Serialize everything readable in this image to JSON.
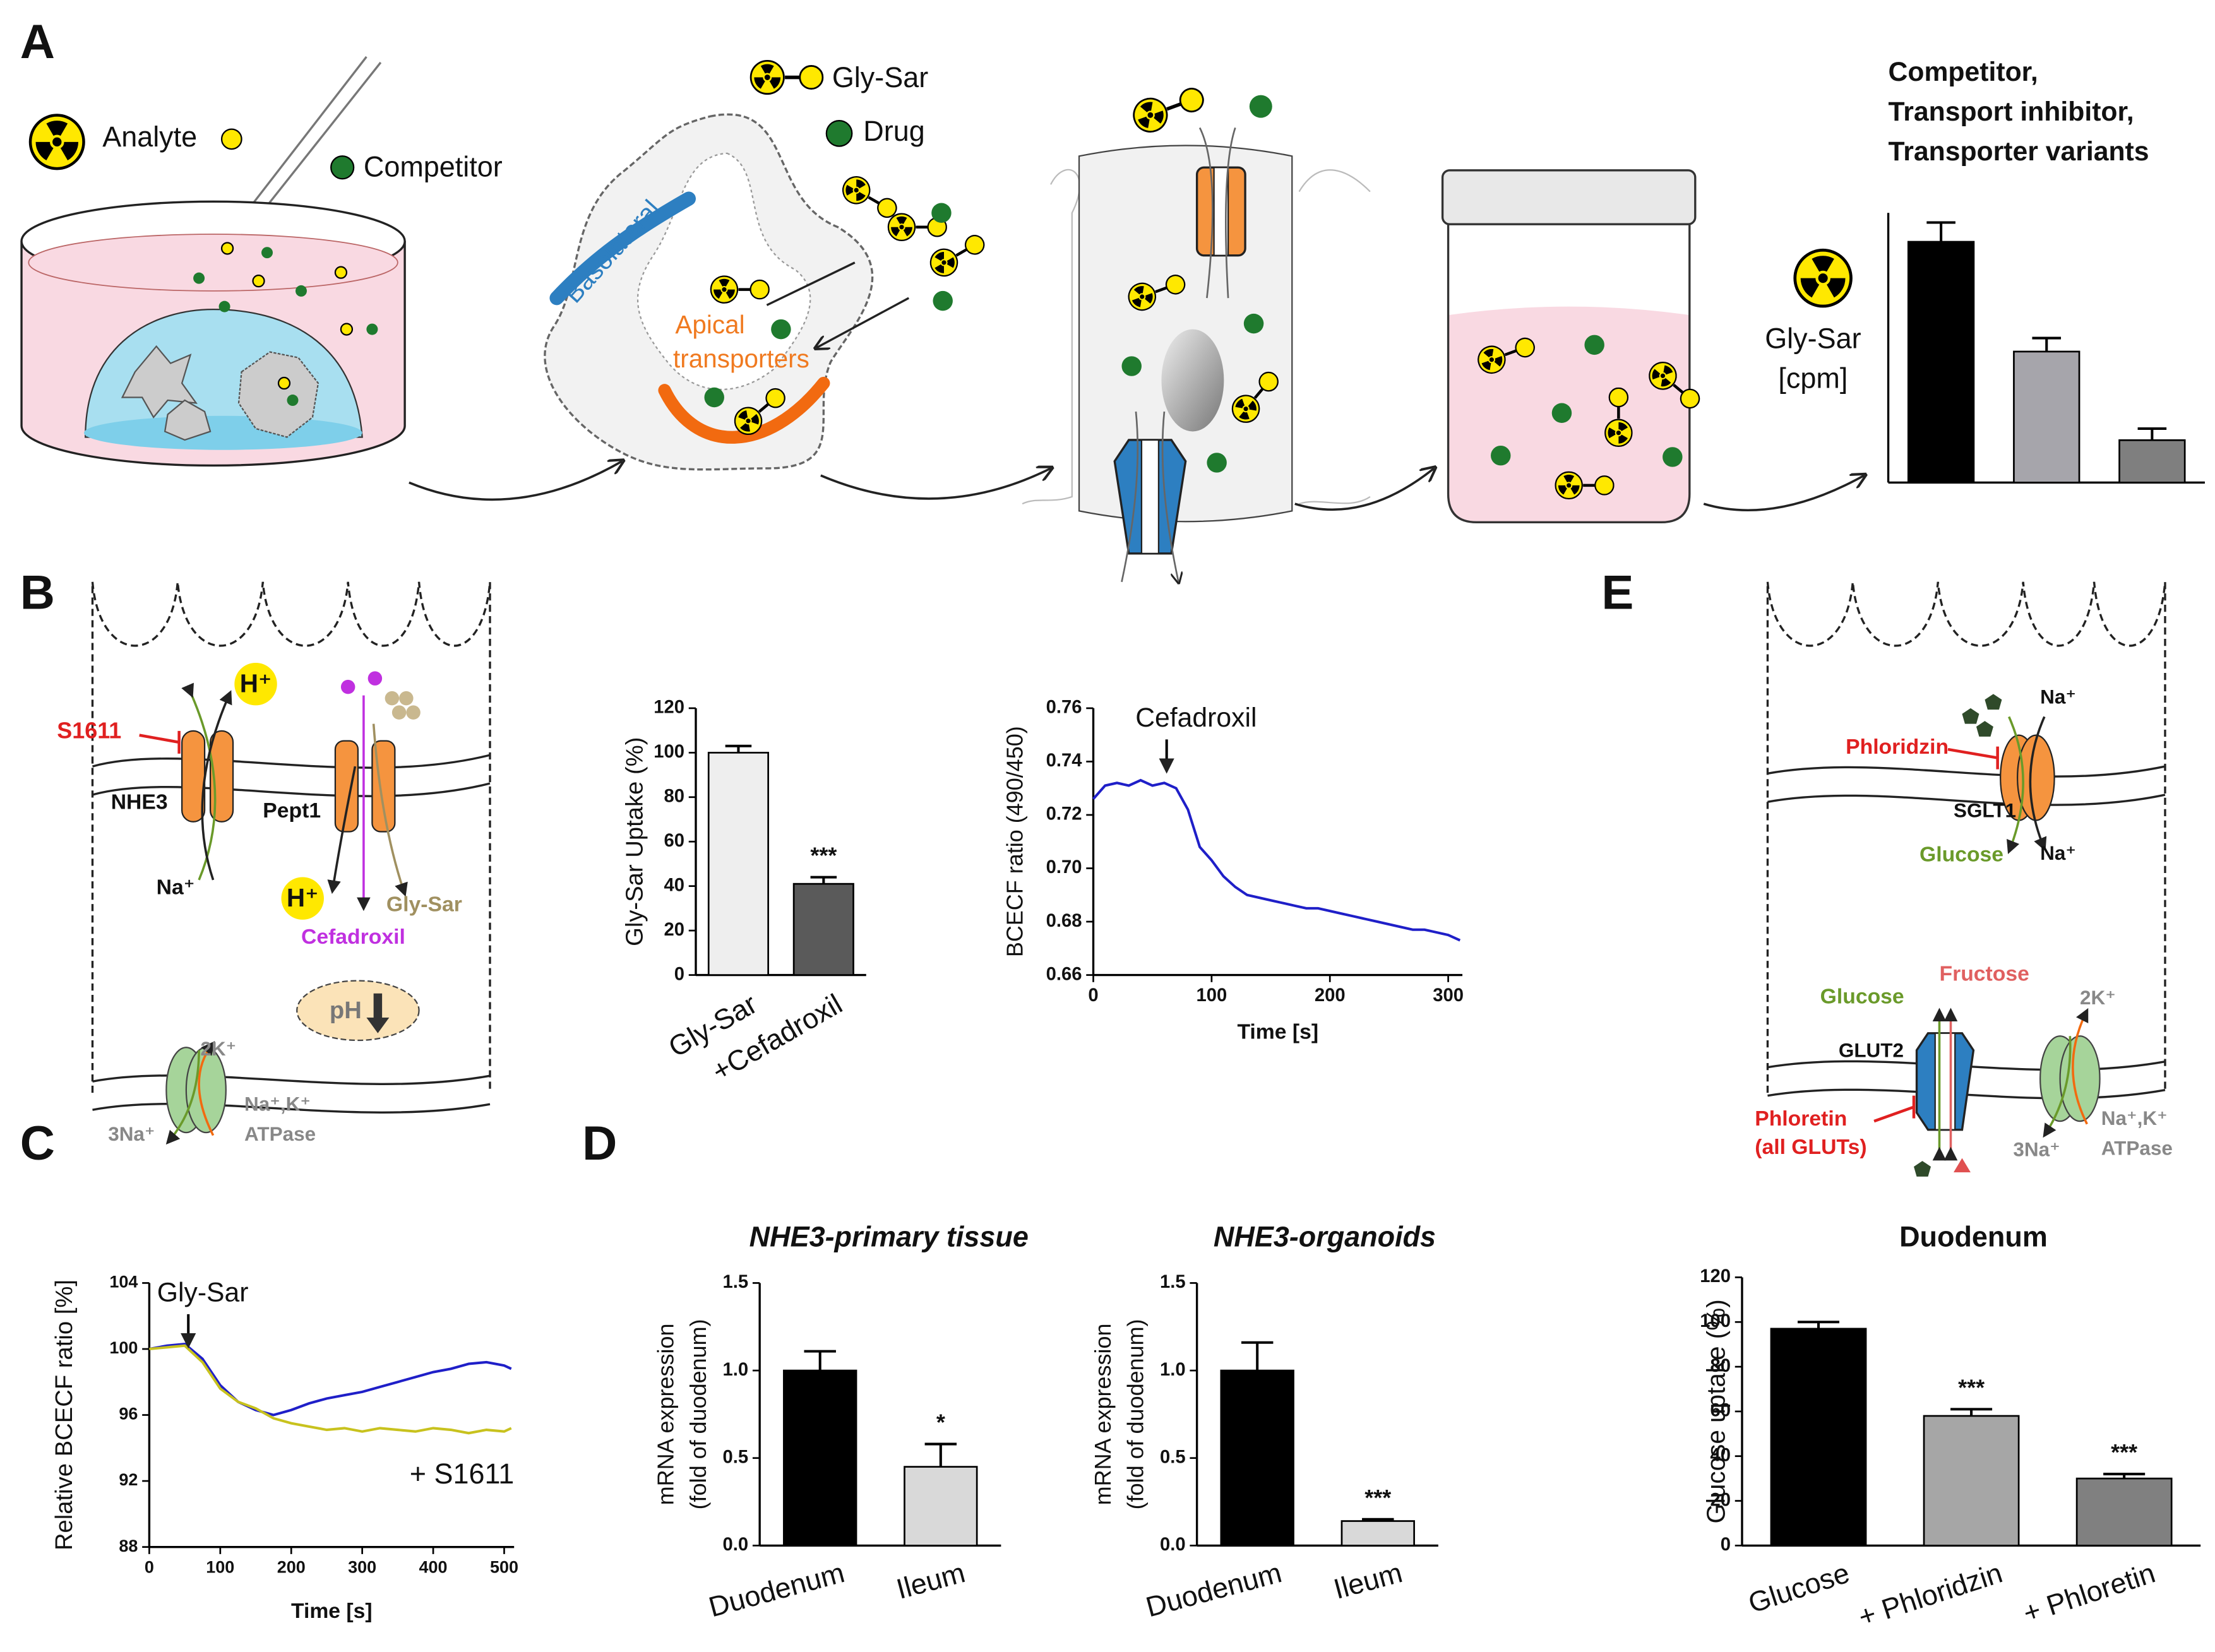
{
  "panel_labels": [
    "A",
    "B",
    "C",
    "D",
    "E"
  ],
  "panel_a": {
    "analyte": "Analyte",
    "competitor": "Competitor",
    "gly_sar": "Gly-Sar",
    "drug": "Drug",
    "basolateral": "Basolateral",
    "apical": [
      "Apical",
      "transporters"
    ]
  },
  "panel_b": {
    "inhibitor": "S1611",
    "h_out": "H⁺",
    "exchanger": "NHE3",
    "transporter": "Pept1",
    "na_in": "Na⁺",
    "h_in": "H⁺",
    "substrate": "Gly-Sar",
    "drug": "Cefadroxil",
    "ph": "pH",
    "k": "2K⁺",
    "na": "3Na⁺",
    "pump": [
      "Na⁺,K⁺",
      "ATPase"
    ]
  },
  "panel_e": {
    "na_out": "Na⁺",
    "inhibitor_1": "Phloridzin",
    "sglt": "SGLT1",
    "glucose_1": "Glucose",
    "na_in": "Na⁺",
    "glucose_2": "Glucose",
    "fructose": "Fructose",
    "glut": "GLUT2",
    "inhibitor_2": [
      "Phloretin",
      "(all GLUTs)"
    ],
    "k": "2K⁺",
    "na": "3Na⁺",
    "pump": [
      "Na⁺,K⁺",
      "ATPase"
    ]
  },
  "chart_data": [
    {
      "type": "bar",
      "title": [
        "Competitor,",
        "Transport inhibitor,",
        "Transporter variants"
      ],
      "ylabel": [
        "Gly-Sar",
        "[cpm]"
      ],
      "values": [
        125,
        68,
        22
      ],
      "errors": [
        10,
        7,
        6
      ],
      "colors": [
        "#000000",
        "#a6a5ab",
        "#7f7f7f"
      ],
      "ylim": [
        0,
        140
      ]
    },
    {
      "type": "bar",
      "ylabel": "Gly-Sar Uptake (%)",
      "categories": [
        "Gly-Sar",
        "+Cefadroxil"
      ],
      "values": [
        100,
        41
      ],
      "errors": [
        3,
        3
      ],
      "annotations": [
        null,
        "***"
      ],
      "colors": [
        "#eeeeee",
        "#5a5a5a"
      ],
      "ylim": [
        0,
        120
      ],
      "yticks": [
        0,
        20,
        40,
        60,
        80,
        100,
        120
      ]
    },
    {
      "type": "line",
      "ylabel": "BCECF ratio (490/450)",
      "xlabel": "Time [s]",
      "annotation": "Cefadroxil",
      "x": [
        0,
        10,
        20,
        30,
        40,
        50,
        60,
        70,
        80,
        90,
        100,
        110,
        120,
        130,
        140,
        150,
        160,
        170,
        180,
        190,
        200,
        210,
        220,
        230,
        240,
        250,
        260,
        270,
        280,
        290,
        300,
        310
      ],
      "series": [
        {
          "color": "#1f1fc8",
          "values": [
            0.726,
            0.731,
            0.732,
            0.731,
            0.733,
            0.731,
            0.732,
            0.73,
            0.722,
            0.708,
            0.703,
            0.697,
            0.693,
            0.69,
            0.689,
            0.688,
            0.687,
            0.686,
            0.685,
            0.685,
            0.684,
            0.683,
            0.682,
            0.681,
            0.68,
            0.679,
            0.678,
            0.677,
            0.677,
            0.676,
            0.675,
            0.673
          ]
        }
      ],
      "xlim": [
        0,
        312
      ],
      "xticks": [
        0,
        100,
        200,
        300
      ],
      "ylim": [
        0.66,
        0.76
      ],
      "yticks": [
        0.66,
        0.68,
        {
          "value": 0.7,
          "label": "0.70"
        },
        0.72,
        0.74,
        0.76
      ]
    },
    {
      "type": "line",
      "ylabel": "Relative BCECF ratio [%]",
      "xlabel": "Time [s]",
      "annotation": "Gly-Sar",
      "x": [
        0,
        25,
        50,
        75,
        100,
        125,
        150,
        175,
        200,
        225,
        250,
        275,
        300,
        325,
        350,
        375,
        400,
        425,
        450,
        475,
        500,
        510
      ],
      "series": [
        {
          "color": "#1f1fc8",
          "values": [
            100,
            100.2,
            100.3,
            99.4,
            97.8,
            96.8,
            96.3,
            96.0,
            96.3,
            96.7,
            97.0,
            97.2,
            97.4,
            97.7,
            98.0,
            98.3,
            98.6,
            98.8,
            99.1,
            99.2,
            99.0,
            98.8
          ]
        },
        {
          "name": "+ S1611",
          "color": "#c8c21e",
          "values": [
            100,
            100.1,
            100.2,
            99.2,
            97.6,
            96.8,
            96.4,
            95.8,
            95.5,
            95.3,
            95.1,
            95.2,
            95.0,
            95.2,
            95.1,
            95.0,
            95.2,
            95.1,
            94.9,
            95.1,
            95.0,
            95.2
          ]
        }
      ],
      "xlim": [
        0,
        514
      ],
      "xticks": [
        0,
        100,
        200,
        300,
        400,
        500
      ],
      "ylim": [
        88,
        104
      ],
      "yticks": [
        88,
        92,
        96,
        100,
        104
      ]
    },
    {
      "type": "bar",
      "title": "NHE3-primary tissue",
      "ylabel": [
        "mRNA expression",
        "(fold of duodenum)"
      ],
      "categories": [
        "Duodenum",
        "Ileum"
      ],
      "values": [
        1.0,
        0.45
      ],
      "errors": [
        0.11,
        0.13
      ],
      "annotations": [
        null,
        "*"
      ],
      "colors": [
        "#000000",
        "#d9d9d9"
      ],
      "ylim": [
        0,
        1.5
      ],
      "yticks": [
        {
          "value": 0,
          "label": "0.0"
        },
        0.5,
        {
          "value": 1,
          "label": "1.0"
        },
        1.5
      ]
    },
    {
      "type": "bar",
      "title": "NHE3-organoids",
      "ylabel": [
        "mRNA expression",
        "(fold of duodenum)"
      ],
      "categories": [
        "Duodenum",
        "Ileum"
      ],
      "values": [
        1.0,
        0.14
      ],
      "errors": [
        0.16,
        0.01
      ],
      "annotations": [
        null,
        "***"
      ],
      "colors": [
        "#000000",
        "#d9d9d9"
      ],
      "ylim": [
        0,
        1.5
      ],
      "yticks": [
        {
          "value": 0,
          "label": "0.0"
        },
        0.5,
        {
          "value": 1,
          "label": "1.0"
        },
        1.5
      ]
    },
    {
      "type": "bar",
      "title": "Duodenum",
      "ylabel": "Glucose uptake (%)",
      "categories": [
        "Glucose",
        "+ Phloridzin",
        "+ Phloretin"
      ],
      "values": [
        97,
        58,
        30
      ],
      "errors": [
        3,
        3,
        2
      ],
      "annotations": [
        null,
        "***",
        "***"
      ],
      "colors": [
        "#000000",
        "#a6a6a6",
        "#808080"
      ],
      "ylim": [
        0,
        120
      ],
      "yticks": [
        0,
        20,
        40,
        60,
        80,
        100,
        120
      ]
    }
  ]
}
